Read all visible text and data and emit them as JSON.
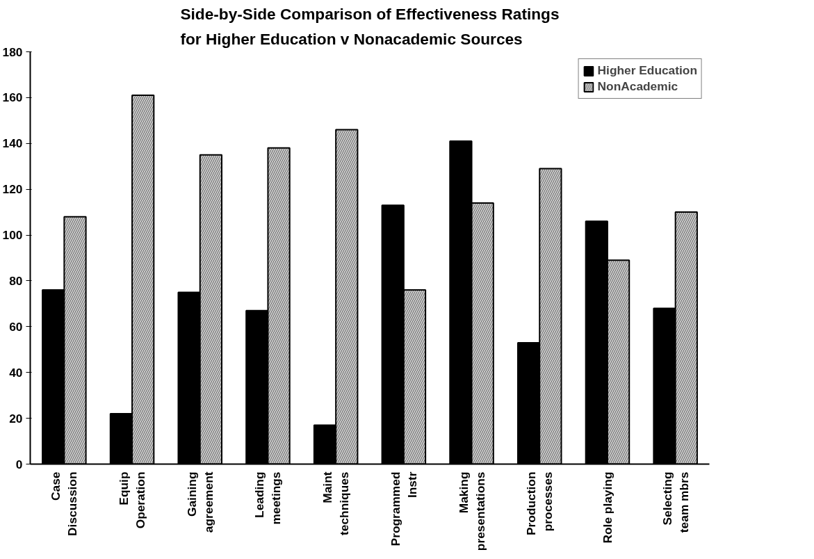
{
  "chart_data": {
    "type": "bar",
    "title": "Side-by-Side Comparison of Effectiveness Ratings\nfor Higher Education v Nonacademic Sources",
    "categories": [
      "Case\nDiscussion",
      "Equip\nOperation",
      "Gaining\nagreement",
      "Leading\nmeetings",
      "Maint\ntechniques",
      "Programmed\nInstr",
      "Making\npresentations",
      "Production\nprocesses",
      "Role playing",
      "Selecting\nteam mbrs"
    ],
    "series": [
      {
        "name": "Higher Education",
        "color": "#000000",
        "values": [
          76,
          22,
          75,
          67,
          17,
          113,
          141,
          53,
          106,
          68
        ]
      },
      {
        "name": "NonAcademic",
        "color": "#cccccc",
        "values": [
          108,
          161,
          135,
          138,
          146,
          76,
          114,
          129,
          89,
          110
        ]
      }
    ],
    "ylim": [
      0,
      180
    ],
    "yticks": [
      0,
      20,
      40,
      60,
      80,
      100,
      120,
      140,
      160,
      180
    ],
    "grid": false,
    "legend": "top right"
  }
}
